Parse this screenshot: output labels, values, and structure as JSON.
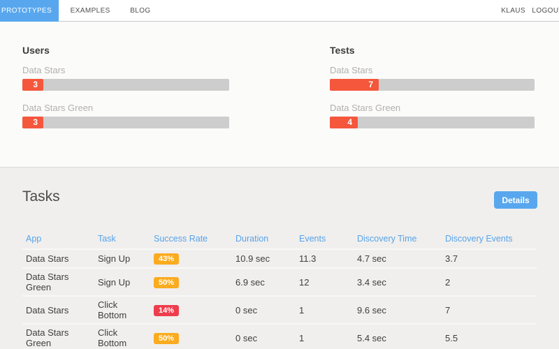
{
  "nav": {
    "items": [
      {
        "label": "PROTOTYPES",
        "active": true
      },
      {
        "label": "EXAMPLES",
        "active": false
      },
      {
        "label": "BLOG",
        "active": false
      }
    ],
    "user_label": "KLAUS",
    "logout_label": "LOGOUT"
  },
  "stats": {
    "users": {
      "title": "Users",
      "bars": [
        {
          "label": "Data Stars",
          "value": 3
        },
        {
          "label": "Data Stars Green",
          "value": 3
        }
      ]
    },
    "tests": {
      "title": "Tests",
      "bars": [
        {
          "label": "Data Stars",
          "value": 7
        },
        {
          "label": "Data Stars Green",
          "value": 4
        }
      ]
    }
  },
  "tasks": {
    "title": "Tasks",
    "details_button": "Details",
    "table": {
      "columns": [
        "App",
        "Task",
        "Success Rate",
        "Duration",
        "Events",
        "Discovery Time",
        "Discovery Events"
      ],
      "rows": [
        {
          "app": "Data Stars",
          "task": "Sign Up",
          "success_rate": "43%",
          "rate_color": "#fbab1f",
          "duration": "10.9 sec",
          "events": "11.3",
          "discovery_time": "4.7 sec",
          "discovery_events": "3.7"
        },
        {
          "app": "Data Stars Green",
          "task": "Sign Up",
          "success_rate": "50%",
          "rate_color": "#fbab1f",
          "duration": "6.9 sec",
          "events": "12",
          "discovery_time": "3.4 sec",
          "discovery_events": "2"
        },
        {
          "app": "Data Stars",
          "task": "Click Bottom",
          "success_rate": "14%",
          "rate_color": "#ee3e4d",
          "duration": "0 sec",
          "events": "1",
          "discovery_time": "9.6 sec",
          "discovery_events": "7"
        },
        {
          "app": "Data Stars Green",
          "task": "Click Bottom",
          "success_rate": "50%",
          "rate_color": "#fbab1f",
          "duration": "0 sec",
          "events": "1",
          "discovery_time": "5.4 sec",
          "discovery_events": "5.5"
        }
      ]
    }
  },
  "colors": {
    "accent_blue": "#58a7ee",
    "bar_fill_red": "#f4573c",
    "bar_track_gray": "#cdcdcd",
    "badge_orange": "#fbab1f",
    "badge_red": "#ee3e4d"
  }
}
